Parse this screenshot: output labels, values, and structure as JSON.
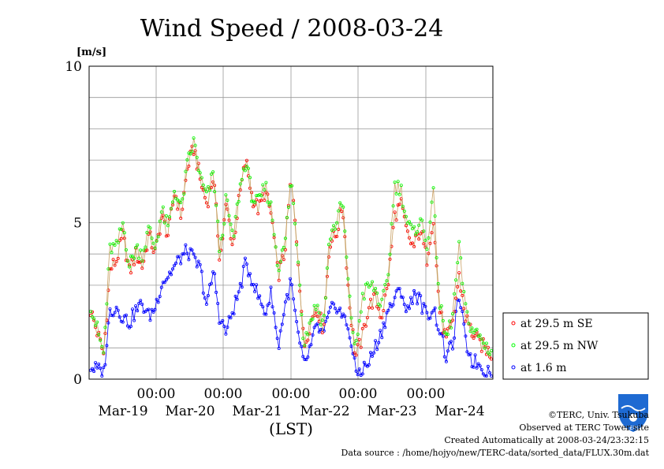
{
  "chart_data": {
    "type": "line",
    "title": "Wind Speed / 2008-03-24",
    "unit_label": "[m/s]",
    "xlabel": "(LST)",
    "ylim": [
      0,
      10
    ],
    "y_ticks": [
      "0",
      "5",
      "10"
    ],
    "x_ticks": [
      {
        "time": "00:00",
        "date": "Mar-19"
      },
      {
        "time": "00:00",
        "date": "Mar-20"
      },
      {
        "time": "00:00",
        "date": "Mar-21"
      },
      {
        "time": "00:00",
        "date": "Mar-22"
      },
      {
        "time": "00:00",
        "date": "Mar-23"
      },
      {
        "time": "00:00",
        "date": "Mar-24"
      }
    ],
    "grid": true,
    "legend_position": "right",
    "series": [
      {
        "name": "at 29.5 m SE",
        "color": "#ff0000",
        "line_color": "#c8a064",
        "key": [
          [
            0,
            2.2
          ],
          [
            1,
            1.5
          ],
          [
            2,
            0.8
          ],
          [
            3,
            3.5
          ],
          [
            4,
            3.8
          ],
          [
            5,
            4.6
          ],
          [
            6,
            3.4
          ],
          [
            7,
            4.0
          ],
          [
            8,
            3.6
          ],
          [
            9,
            4.6
          ],
          [
            10,
            4.0
          ],
          [
            11,
            5.2
          ],
          [
            12,
            4.6
          ],
          [
            13,
            6.0
          ],
          [
            14,
            5.2
          ],
          [
            15,
            6.8
          ],
          [
            16,
            7.4
          ],
          [
            17,
            6.3
          ],
          [
            18,
            5.6
          ],
          [
            19,
            6.5
          ],
          [
            20,
            3.8
          ],
          [
            21,
            5.6
          ],
          [
            22,
            4.2
          ],
          [
            23,
            5.8
          ],
          [
            24,
            7.0
          ],
          [
            25,
            5.8
          ],
          [
            26,
            5.4
          ],
          [
            27,
            6.0
          ],
          [
            28,
            5.2
          ],
          [
            29,
            3.3
          ],
          [
            30,
            4.0
          ],
          [
            31,
            6.4
          ],
          [
            32,
            4.2
          ],
          [
            33,
            1.0
          ],
          [
            34,
            1.8
          ],
          [
            35,
            2.3
          ],
          [
            36,
            1.6
          ],
          [
            37,
            4.4
          ],
          [
            38,
            4.6
          ],
          [
            39,
            5.6
          ],
          [
            40,
            2.5
          ],
          [
            41,
            0.7
          ],
          [
            42,
            1.3
          ],
          [
            43,
            2.3
          ],
          [
            44,
            2.6
          ],
          [
            45,
            2.0
          ],
          [
            46,
            3.0
          ],
          [
            47,
            5.2
          ],
          [
            48,
            5.6
          ],
          [
            49,
            4.6
          ],
          [
            50,
            4.2
          ],
          [
            51,
            4.8
          ],
          [
            52,
            3.8
          ],
          [
            53,
            5.2
          ],
          [
            54,
            2.2
          ],
          [
            55,
            1.2
          ],
          [
            56,
            1.8
          ],
          [
            57,
            3.3
          ],
          [
            58,
            2.0
          ],
          [
            59,
            1.5
          ],
          [
            60,
            1.2
          ],
          [
            61,
            1.0
          ],
          [
            62,
            0.8
          ]
        ]
      },
      {
        "name": "at 29.5 m NW",
        "color": "#00ff00",
        "line_color": "#c8a064",
        "key": [
          [
            0,
            2.4
          ],
          [
            1,
            1.6
          ],
          [
            2,
            0.8
          ],
          [
            3,
            4.2
          ],
          [
            4,
            4.2
          ],
          [
            5,
            5.0
          ],
          [
            6,
            3.6
          ],
          [
            7,
            4.2
          ],
          [
            8,
            4.0
          ],
          [
            9,
            4.8
          ],
          [
            10,
            4.2
          ],
          [
            11,
            5.4
          ],
          [
            12,
            4.8
          ],
          [
            13,
            6.1
          ],
          [
            14,
            5.4
          ],
          [
            15,
            6.9
          ],
          [
            16,
            7.6
          ],
          [
            17,
            6.4
          ],
          [
            18,
            5.8
          ],
          [
            19,
            6.6
          ],
          [
            20,
            4.0
          ],
          [
            21,
            5.8
          ],
          [
            22,
            4.4
          ],
          [
            23,
            6.0
          ],
          [
            24,
            7.0
          ],
          [
            25,
            5.8
          ],
          [
            26,
            5.6
          ],
          [
            27,
            6.2
          ],
          [
            28,
            5.4
          ],
          [
            29,
            3.6
          ],
          [
            30,
            4.2
          ],
          [
            31,
            6.4
          ],
          [
            32,
            4.2
          ],
          [
            33,
            1.1
          ],
          [
            34,
            1.9
          ],
          [
            35,
            2.4
          ],
          [
            36,
            1.7
          ],
          [
            37,
            4.6
          ],
          [
            38,
            5.0
          ],
          [
            39,
            5.7
          ],
          [
            40,
            2.6
          ],
          [
            41,
            0.9
          ],
          [
            42,
            2.6
          ],
          [
            43,
            3.0
          ],
          [
            44,
            2.9
          ],
          [
            45,
            2.3
          ],
          [
            46,
            3.2
          ],
          [
            47,
            6.2
          ],
          [
            48,
            6.1
          ],
          [
            49,
            5.0
          ],
          [
            50,
            4.6
          ],
          [
            51,
            5.2
          ],
          [
            52,
            4.2
          ],
          [
            53,
            6.0
          ],
          [
            54,
            2.4
          ],
          [
            55,
            1.3
          ],
          [
            56,
            2.0
          ],
          [
            57,
            4.2
          ],
          [
            58,
            2.2
          ],
          [
            59,
            1.6
          ],
          [
            60,
            1.4
          ],
          [
            61,
            1.1
          ],
          [
            62,
            0.9
          ]
        ]
      },
      {
        "name": "at 1.6 m",
        "color": "#0000ff",
        "line_color": "#0000ff",
        "key": [
          [
            0,
            0.4
          ],
          [
            1,
            0.3
          ],
          [
            2,
            0.2
          ],
          [
            3,
            2.2
          ],
          [
            4,
            2.3
          ],
          [
            5,
            2.0
          ],
          [
            6,
            1.8
          ],
          [
            7,
            2.2
          ],
          [
            8,
            2.4
          ],
          [
            9,
            2.0
          ],
          [
            10,
            2.3
          ],
          [
            11,
            3.1
          ],
          [
            12,
            3.3
          ],
          [
            13,
            3.6
          ],
          [
            14,
            3.9
          ],
          [
            15,
            4.1
          ],
          [
            16,
            3.8
          ],
          [
            17,
            3.5
          ],
          [
            18,
            2.3
          ],
          [
            19,
            3.5
          ],
          [
            20,
            1.9
          ],
          [
            21,
            1.5
          ],
          [
            22,
            2.2
          ],
          [
            23,
            2.8
          ],
          [
            24,
            3.7
          ],
          [
            25,
            3.2
          ],
          [
            26,
            2.6
          ],
          [
            27,
            2.1
          ],
          [
            28,
            2.8
          ],
          [
            29,
            1.0
          ],
          [
            30,
            2.3
          ],
          [
            31,
            3.1
          ],
          [
            32,
            1.5
          ],
          [
            33,
            0.4
          ],
          [
            34,
            1.0
          ],
          [
            35,
            1.7
          ],
          [
            36,
            1.4
          ],
          [
            37,
            2.1
          ],
          [
            38,
            2.4
          ],
          [
            39,
            2.0
          ],
          [
            40,
            1.6
          ],
          [
            41,
            0.2
          ],
          [
            42,
            0.3
          ],
          [
            43,
            0.5
          ],
          [
            44,
            1.0
          ],
          [
            45,
            1.5
          ],
          [
            46,
            2.2
          ],
          [
            47,
            2.5
          ],
          [
            48,
            2.9
          ],
          [
            49,
            2.1
          ],
          [
            50,
            2.8
          ],
          [
            51,
            2.5
          ],
          [
            52,
            2.0
          ],
          [
            53,
            2.3
          ],
          [
            54,
            1.6
          ],
          [
            55,
            0.7
          ],
          [
            56,
            1.1
          ],
          [
            57,
            2.7
          ],
          [
            58,
            1.2
          ],
          [
            59,
            0.6
          ],
          [
            60,
            0.5
          ],
          [
            61,
            0.3
          ],
          [
            62,
            0.3
          ]
        ]
      }
    ]
  },
  "credits": {
    "copyright": "©TERC, Univ. Tsukuba",
    "site": "Observed at TERC Tower site",
    "created": "Created Automatically at 2008-03-24/23:32:15",
    "source": "Data source : /home/hojyo/new/TERC-data/sorted_data/FLUX.30m.dat"
  },
  "logo_text": "TERC"
}
